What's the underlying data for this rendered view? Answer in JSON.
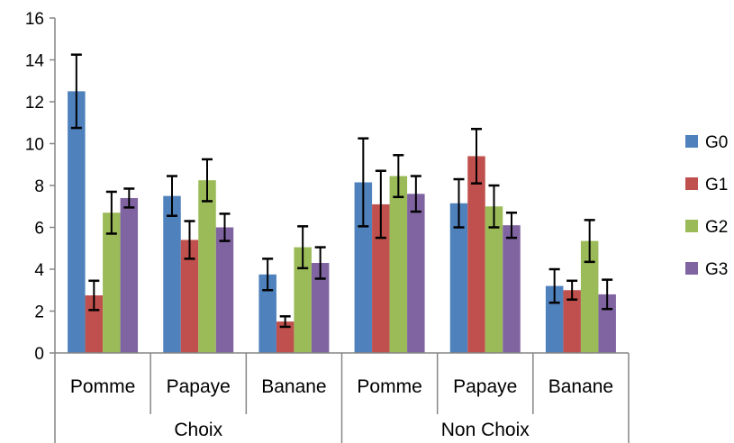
{
  "chart_data": {
    "type": "bar",
    "groups": [
      "Choix",
      "Non Choix"
    ],
    "categories": [
      "Pomme",
      "Papaye",
      "Banane",
      "Pomme",
      "Papaye",
      "Banane"
    ],
    "ylim": [
      0,
      16
    ],
    "yticks": [
      "0",
      "2",
      "4",
      "6",
      "8",
      "10",
      "12",
      "14",
      "16"
    ],
    "grid": false,
    "legend_position": "right",
    "series": [
      {
        "name": "G0",
        "color": "#4F81BD",
        "values": [
          12.5,
          7.5,
          3.75,
          8.15,
          7.15,
          3.2
        ],
        "errors": [
          1.75,
          0.95,
          0.75,
          2.1,
          1.15,
          0.8
        ]
      },
      {
        "name": "G1",
        "color": "#C0504D",
        "values": [
          2.75,
          5.4,
          1.5,
          7.1,
          9.4,
          3.0
        ],
        "errors": [
          0.7,
          0.9,
          0.25,
          1.6,
          1.3,
          0.45
        ]
      },
      {
        "name": "G2",
        "color": "#9BBB59",
        "values": [
          6.7,
          8.25,
          5.05,
          8.45,
          7.0,
          5.35
        ],
        "errors": [
          1.0,
          1.0,
          1.0,
          1.0,
          1.0,
          1.0
        ]
      },
      {
        "name": "G3",
        "color": "#8064A2",
        "values": [
          7.4,
          6.0,
          4.3,
          7.6,
          6.1,
          2.8
        ],
        "errors": [
          0.45,
          0.65,
          0.75,
          0.85,
          0.6,
          0.7
        ]
      }
    ]
  }
}
